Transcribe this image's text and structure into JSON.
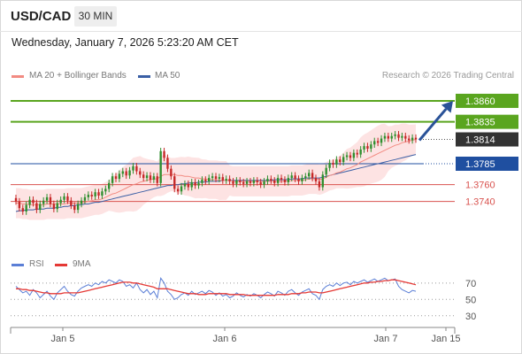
{
  "header": {
    "symbol": "USD/CAD",
    "timeframe": "30 MIN",
    "datetime": "Wednesday, January 7, 2026 5:23:20 AM CET"
  },
  "legend": {
    "ma20": "MA 20 + Bollinger Bands",
    "ma50": "MA 50",
    "credit": "Research © 2026 Trading Central"
  },
  "indicator_legend": {
    "rsi": "RSI",
    "ma9": "9MA"
  },
  "colors": {
    "resistance": "#5aa51f",
    "support": "#d9534f",
    "pivot": "#1f4fa0",
    "ma20": "#f28b82",
    "ma50": "#3a5fa5",
    "bollinger_fill": "#fde3e3",
    "candle_up": "#2f8f2f",
    "candle_down": "#c62828",
    "rsi": "#5b7fd6",
    "ma9": "#e53935",
    "arrow": "#2a5298",
    "last_price_bg": "#333333"
  },
  "chart_data": [
    {
      "type": "candlestick",
      "title": "USD/CAD 30 MIN",
      "x_tick_labels": [
        "Jan 5",
        "Jan 6",
        "Jan 7",
        "Jan 15"
      ],
      "ylim": [
        1.369,
        1.388
      ],
      "levels": [
        {
          "value": 1.386,
          "label": "1.3860",
          "kind": "resistance"
        },
        {
          "value": 1.3835,
          "label": "1.3835",
          "kind": "resistance"
        },
        {
          "value": 1.3814,
          "label": "1.3814",
          "kind": "last"
        },
        {
          "value": 1.3785,
          "label": "1.3785",
          "kind": "pivot"
        },
        {
          "value": 1.376,
          "label": "1.3760",
          "kind": "support"
        },
        {
          "value": 1.374,
          "label": "1.3740",
          "kind": "support"
        }
      ],
      "last_price": 1.3814,
      "forecast_target": 1.386,
      "candles_close": [
        1.374,
        1.3732,
        1.3728,
        1.3736,
        1.3742,
        1.3738,
        1.373,
        1.3737,
        1.3741,
        1.3745,
        1.3737,
        1.3731,
        1.3738,
        1.3742,
        1.3746,
        1.3741,
        1.3735,
        1.373,
        1.3737,
        1.3741,
        1.3745,
        1.3748,
        1.3746,
        1.3751,
        1.3747,
        1.3752,
        1.3755,
        1.3762,
        1.377,
        1.3767,
        1.3773,
        1.3776,
        1.3771,
        1.3777,
        1.3782,
        1.3776,
        1.3772,
        1.3768,
        1.3771,
        1.3766,
        1.377,
        1.3762,
        1.38,
        1.3792,
        1.3779,
        1.377,
        1.3755,
        1.3752,
        1.3758,
        1.3761,
        1.3757,
        1.3763,
        1.3759,
        1.3762,
        1.3766,
        1.3764,
        1.3768,
        1.377,
        1.3767,
        1.3769,
        1.3765,
        1.3767,
        1.3764,
        1.3761,
        1.3765,
        1.3763,
        1.3761,
        1.3764,
        1.3762,
        1.3765,
        1.3763,
        1.376,
        1.3764,
        1.3767,
        1.3765,
        1.3762,
        1.3768,
        1.3766,
        1.3763,
        1.3768,
        1.3771,
        1.3767,
        1.3764,
        1.3768,
        1.377,
        1.3774,
        1.3768,
        1.3764,
        1.3757,
        1.3772,
        1.378,
        1.3786,
        1.3784,
        1.379,
        1.3787,
        1.3793,
        1.3795,
        1.3792,
        1.3798,
        1.3796,
        1.3802,
        1.3806,
        1.3803,
        1.3808,
        1.3812,
        1.381,
        1.3815,
        1.3818,
        1.3815,
        1.3818,
        1.382,
        1.3816,
        1.3818,
        1.3815,
        1.3813,
        1.3816,
        1.3814
      ],
      "ma20": [
        1.3738,
        1.3738,
        1.3737,
        1.3737,
        1.3736,
        1.3736,
        1.3736,
        1.3736,
        1.3736,
        1.3737,
        1.3737,
        1.3737,
        1.3737,
        1.3737,
        1.3737,
        1.3738,
        1.3738,
        1.3738,
        1.3738,
        1.3738,
        1.3739,
        1.374,
        1.3741,
        1.3742,
        1.3742,
        1.3743,
        1.3745,
        1.3747,
        1.3749,
        1.375,
        1.3752,
        1.3754,
        1.3756,
        1.3758,
        1.376,
        1.3761,
        1.3763,
        1.3764,
        1.3765,
        1.3766,
        1.3767,
        1.3767,
        1.377,
        1.3772,
        1.3772,
        1.3772,
        1.3772,
        1.3771,
        1.3771,
        1.377,
        1.377,
        1.3769,
        1.3768,
        1.3768,
        1.3767,
        1.3767,
        1.3766,
        1.3766,
        1.3766,
        1.3765,
        1.3765,
        1.3765,
        1.3765,
        1.3764,
        1.3764,
        1.3764,
        1.3764,
        1.3764,
        1.3764,
        1.3764,
        1.3764,
        1.3764,
        1.3764,
        1.3764,
        1.3764,
        1.3764,
        1.3764,
        1.3764,
        1.3764,
        1.3764,
        1.3765,
        1.3765,
        1.3765,
        1.3765,
        1.3766,
        1.3767,
        1.3767,
        1.3767,
        1.3766,
        1.3767,
        1.3769,
        1.3771,
        1.3772,
        1.3774,
        1.3775,
        1.3777,
        1.3779,
        1.378,
        1.3782,
        1.3784,
        1.3787,
        1.3789,
        1.3791,
        1.3793,
        1.3795,
        1.3797,
        1.3799,
        1.3801,
        1.3803,
        1.3805,
        1.3807,
        1.3808,
        1.381,
        1.3811,
        1.3812,
        1.3813,
        1.3814
      ],
      "ma50": [
        1.3728,
        1.3729,
        1.3729,
        1.373,
        1.373,
        1.373,
        1.3731,
        1.3731,
        1.3731,
        1.3732,
        1.3732,
        1.3732,
        1.3733,
        1.3733,
        1.3734,
        1.3734,
        1.3735,
        1.3735,
        1.3736,
        1.3736,
        1.3737,
        1.3737,
        1.3738,
        1.3739,
        1.3739,
        1.374,
        1.3741,
        1.3742,
        1.3743,
        1.3744,
        1.3745,
        1.3746,
        1.3747,
        1.3748,
        1.3749,
        1.375,
        1.3751,
        1.3752,
        1.3753,
        1.3754,
        1.3755,
        1.3756,
        1.3757,
        1.3758,
        1.3759,
        1.3759,
        1.376,
        1.376,
        1.3761,
        1.3761,
        1.3762,
        1.3762,
        1.3762,
        1.3763,
        1.3763,
        1.3763,
        1.3764,
        1.3764,
        1.3764,
        1.3764,
        1.3765,
        1.3765,
        1.3765,
        1.3765,
        1.3765,
        1.3765,
        1.3765,
        1.3765,
        1.3765,
        1.3765,
        1.3765,
        1.3765,
        1.3765,
        1.3765,
        1.3765,
        1.3766,
        1.3766,
        1.3766,
        1.3766,
        1.3766,
        1.3767,
        1.3767,
        1.3767,
        1.3767,
        1.3768,
        1.3768,
        1.3768,
        1.3768,
        1.3768,
        1.3769,
        1.377,
        1.3771,
        1.3772,
        1.3773,
        1.3774,
        1.3775,
        1.3776,
        1.3777,
        1.3778,
        1.3779,
        1.378,
        1.3781,
        1.3782,
        1.3783,
        1.3784,
        1.3785,
        1.3786,
        1.3787,
        1.3788,
        1.3789,
        1.379,
        1.3791,
        1.3792,
        1.3793,
        1.3794,
        1.3795,
        1.3796
      ]
    },
    {
      "type": "line",
      "title": "RSI",
      "ylim": [
        20,
        85
      ],
      "y_tick_labels": [
        "70",
        "50",
        "30"
      ],
      "series": [
        {
          "name": "RSI",
          "values": [
            66,
            62,
            58,
            60,
            55,
            62,
            58,
            52,
            56,
            60,
            54,
            50,
            58,
            62,
            66,
            60,
            56,
            54,
            60,
            64,
            66,
            68,
            66,
            70,
            68,
            72,
            70,
            74,
            72,
            70,
            74,
            72,
            66,
            68,
            64,
            70,
            62,
            58,
            62,
            56,
            60,
            52,
            76,
            70,
            60,
            56,
            50,
            52,
            56,
            58,
            55,
            60,
            56,
            58,
            60,
            57,
            61,
            59,
            55,
            58,
            54,
            56,
            52,
            54,
            58,
            55,
            53,
            56,
            54,
            57,
            55,
            52,
            56,
            59,
            57,
            54,
            60,
            58,
            55,
            60,
            62,
            58,
            55,
            59,
            61,
            63,
            57,
            55,
            50,
            62,
            66,
            68,
            66,
            70,
            67,
            70,
            71,
            68,
            72,
            70,
            72,
            74,
            71,
            73,
            75,
            72,
            74,
            76,
            73,
            74,
            75,
            66,
            62,
            60,
            58,
            61,
            60
          ]
        },
        {
          "name": "9MA",
          "values": [
            63,
            63,
            62,
            62,
            61,
            61,
            60,
            59,
            58,
            58,
            57,
            57,
            57,
            57,
            58,
            58,
            58,
            58,
            58,
            59,
            60,
            61,
            62,
            63,
            64,
            65,
            66,
            67,
            68,
            69,
            70,
            71,
            71,
            71,
            70,
            70,
            69,
            68,
            67,
            66,
            65,
            63,
            63,
            63,
            63,
            62,
            61,
            60,
            59,
            58,
            57,
            57,
            57,
            56,
            56,
            56,
            57,
            57,
            57,
            57,
            57,
            57,
            56,
            56,
            56,
            56,
            56,
            55,
            55,
            55,
            55,
            55,
            55,
            55,
            55,
            55,
            56,
            56,
            56,
            56,
            57,
            57,
            57,
            58,
            58,
            59,
            59,
            59,
            58,
            58,
            59,
            60,
            61,
            62,
            63,
            64,
            65,
            66,
            67,
            68,
            69,
            70,
            70,
            71,
            71,
            72,
            72,
            73,
            73,
            74,
            74,
            73,
            72,
            71,
            70,
            69,
            68
          ]
        }
      ]
    }
  ]
}
